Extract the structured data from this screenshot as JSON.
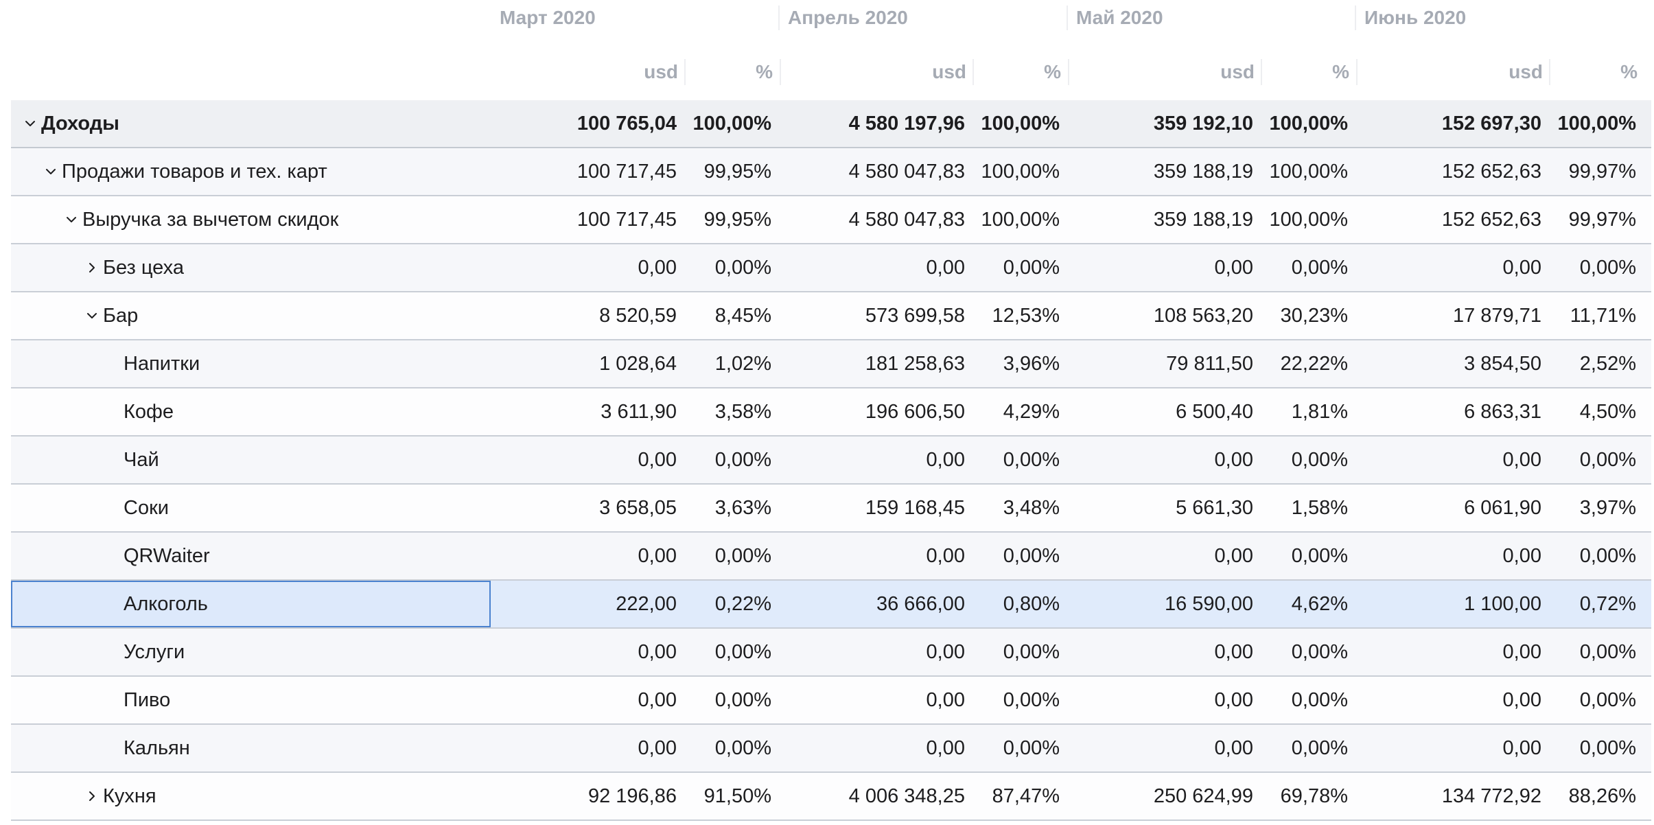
{
  "months": [
    "Март 2020",
    "Апрель 2020",
    "Май 2020",
    "Июнь 2020"
  ],
  "subheaders": {
    "amount": "usd",
    "percent": "%"
  },
  "rows": [
    {
      "label": "Доходы",
      "level": 0,
      "toggle": "expanded",
      "total": true,
      "values": [
        [
          "100 765,04",
          "100,00%"
        ],
        [
          "4 580 197,96",
          "100,00%"
        ],
        [
          "359 192,10",
          "100,00%"
        ],
        [
          "152 697,30",
          "100,00%"
        ]
      ]
    },
    {
      "label": "Продажи товаров и тех. карт",
      "level": 1,
      "toggle": "expanded",
      "values": [
        [
          "100 717,45",
          "99,95%"
        ],
        [
          "4 580 047,83",
          "100,00%"
        ],
        [
          "359 188,19",
          "100,00%"
        ],
        [
          "152 652,63",
          "99,97%"
        ]
      ]
    },
    {
      "label": "Выручка за вычетом скидок",
      "level": 2,
      "toggle": "expanded",
      "values": [
        [
          "100 717,45",
          "99,95%"
        ],
        [
          "4 580 047,83",
          "100,00%"
        ],
        [
          "359 188,19",
          "100,00%"
        ],
        [
          "152 652,63",
          "99,97%"
        ]
      ]
    },
    {
      "label": "Без цеха",
      "level": 3,
      "toggle": "collapsed",
      "values": [
        [
          "0,00",
          "0,00%"
        ],
        [
          "0,00",
          "0,00%"
        ],
        [
          "0,00",
          "0,00%"
        ],
        [
          "0,00",
          "0,00%"
        ]
      ]
    },
    {
      "label": "Бар",
      "level": 3,
      "toggle": "expanded",
      "values": [
        [
          "8 520,59",
          "8,45%"
        ],
        [
          "573 699,58",
          "12,53%"
        ],
        [
          "108 563,20",
          "30,23%"
        ],
        [
          "17 879,71",
          "11,71%"
        ]
      ]
    },
    {
      "label": "Напитки",
      "level": 4,
      "toggle": "none",
      "values": [
        [
          "1 028,64",
          "1,02%"
        ],
        [
          "181 258,63",
          "3,96%"
        ],
        [
          "79 811,50",
          "22,22%"
        ],
        [
          "3 854,50",
          "2,52%"
        ]
      ]
    },
    {
      "label": "Кофе",
      "level": 4,
      "toggle": "none",
      "values": [
        [
          "3 611,90",
          "3,58%"
        ],
        [
          "196 606,50",
          "4,29%"
        ],
        [
          "6 500,40",
          "1,81%"
        ],
        [
          "6 863,31",
          "4,50%"
        ]
      ]
    },
    {
      "label": "Чай",
      "level": 4,
      "toggle": "none",
      "values": [
        [
          "0,00",
          "0,00%"
        ],
        [
          "0,00",
          "0,00%"
        ],
        [
          "0,00",
          "0,00%"
        ],
        [
          "0,00",
          "0,00%"
        ]
      ]
    },
    {
      "label": "Соки",
      "level": 4,
      "toggle": "none",
      "values": [
        [
          "3 658,05",
          "3,63%"
        ],
        [
          "159 168,45",
          "3,48%"
        ],
        [
          "5 661,30",
          "1,58%"
        ],
        [
          "6 061,90",
          "3,97%"
        ]
      ]
    },
    {
      "label": "QRWaiter",
      "level": 4,
      "toggle": "none",
      "values": [
        [
          "0,00",
          "0,00%"
        ],
        [
          "0,00",
          "0,00%"
        ],
        [
          "0,00",
          "0,00%"
        ],
        [
          "0,00",
          "0,00%"
        ]
      ]
    },
    {
      "label": "Алкоголь",
      "level": 4,
      "toggle": "none",
      "selected": true,
      "values": [
        [
          "222,00",
          "0,22%"
        ],
        [
          "36 666,00",
          "0,80%"
        ],
        [
          "16 590,00",
          "4,62%"
        ],
        [
          "1 100,00",
          "0,72%"
        ]
      ]
    },
    {
      "label": "Услуги",
      "level": 4,
      "toggle": "none",
      "values": [
        [
          "0,00",
          "0,00%"
        ],
        [
          "0,00",
          "0,00%"
        ],
        [
          "0,00",
          "0,00%"
        ],
        [
          "0,00",
          "0,00%"
        ]
      ]
    },
    {
      "label": "Пиво",
      "level": 4,
      "toggle": "none",
      "values": [
        [
          "0,00",
          "0,00%"
        ],
        [
          "0,00",
          "0,00%"
        ],
        [
          "0,00",
          "0,00%"
        ],
        [
          "0,00",
          "0,00%"
        ]
      ]
    },
    {
      "label": "Кальян",
      "level": 4,
      "toggle": "none",
      "values": [
        [
          "0,00",
          "0,00%"
        ],
        [
          "0,00",
          "0,00%"
        ],
        [
          "0,00",
          "0,00%"
        ],
        [
          "0,00",
          "0,00%"
        ]
      ]
    },
    {
      "label": "Кухня",
      "level": 3,
      "toggle": "collapsed",
      "values": [
        [
          "92 196,86",
          "91,50%"
        ],
        [
          "4 006 348,25",
          "87,47%"
        ],
        [
          "250 624,99",
          "69,78%"
        ],
        [
          "134 772,92",
          "88,26%"
        ]
      ]
    }
  ],
  "colors": {
    "header_text": "#a6abb4",
    "selection_border": "#4a82cf",
    "selection_bg": "#e0ebfb"
  }
}
